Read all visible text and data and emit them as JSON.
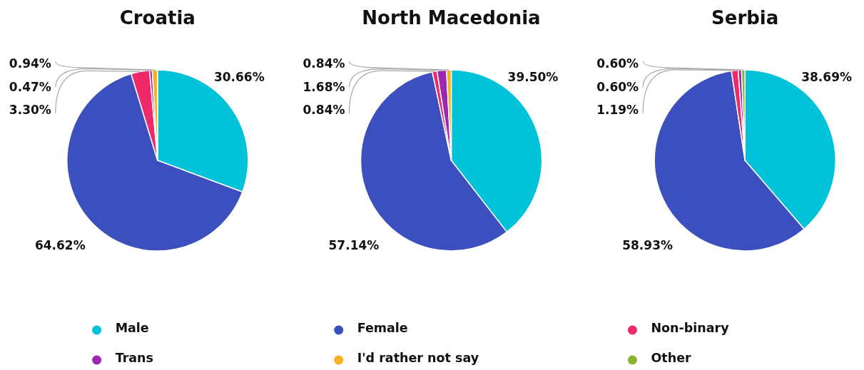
{
  "chart_data": [
    {
      "type": "pie",
      "title": "Croatia",
      "categories": [
        "Male",
        "Female",
        "Non-binary",
        "Trans",
        "I'd rather not say",
        "Other"
      ],
      "values": [
        30.66,
        64.62,
        3.3,
        0.47,
        0.94,
        null
      ],
      "colors": [
        "#00c2d9",
        "#3b4fbe",
        "#ee2a6b",
        "#9c27b0",
        "#f5b323",
        "#8bb230"
      ],
      "value_labels": [
        "30.66%",
        "64.62%",
        "3.30%",
        "0.47%",
        "0.94%",
        null
      ],
      "legend": "bottom"
    },
    {
      "type": "pie",
      "title": "North Macedonia",
      "categories": [
        null,
        null,
        null,
        null,
        null
      ],
      "values": [
        39.5,
        57.14,
        0.84,
        1.68,
        0.84
      ],
      "colors": [
        "#00c2d9",
        "#3b4fbe",
        "#ee2a6b",
        "#9c27b0",
        "#f5b323"
      ],
      "value_labels": [
        "39.50%",
        "57.14%",
        "0.84%",
        "1.68%",
        "0.84%"
      ]
    },
    {
      "type": "pie",
      "title": "Serbia",
      "categories": [
        null,
        null,
        null,
        null,
        null
      ],
      "values": [
        38.69,
        58.93,
        1.19,
        0.6,
        0.6
      ],
      "colors": [
        "#00c2d9",
        "#3b4fbe",
        "#ee2a6b",
        "#9c27b0",
        "#8bb230"
      ],
      "value_labels": [
        "38.69%",
        "58.93%",
        "1.19%",
        "0.60%",
        "0.60%"
      ]
    }
  ]
}
